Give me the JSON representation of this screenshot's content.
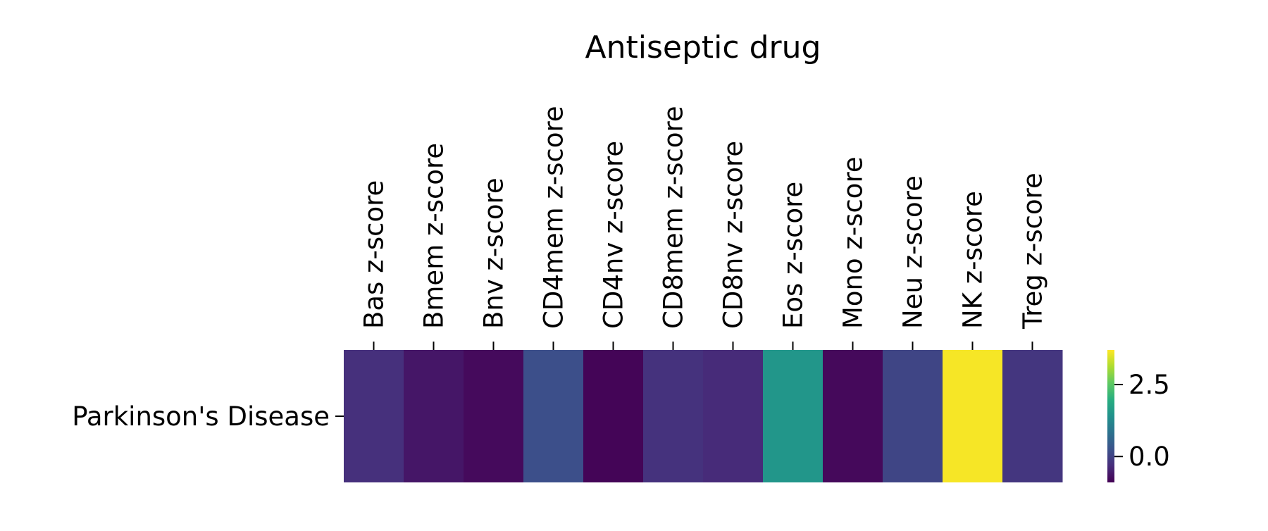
{
  "chart_data": {
    "type": "heatmap",
    "title": "Antiseptic drug",
    "columns": [
      "Bas z-score",
      "Bmem z-score",
      "Bnv z-score",
      "CD4mem z-score",
      "CD4nv z-score",
      "CD8mem z-score",
      "CD8nv z-score",
      "Eos z-score",
      "Mono z-score",
      "Neu z-score",
      "NK z-score",
      "Treg z-score"
    ],
    "rows": [
      "Parkinson's Disease"
    ],
    "values": [
      [
        -0.28,
        -0.62,
        -0.78,
        0.2,
        -0.85,
        -0.25,
        -0.35,
        1.5,
        -0.8,
        0.05,
        3.65,
        -0.18
      ]
    ],
    "colormap": "viridis",
    "vmin": -0.9,
    "vmax": 3.7,
    "colorbar": {
      "ticks": [
        0.0,
        2.5
      ],
      "tick_labels": [
        "0.0",
        "2.5"
      ],
      "placement": "right"
    }
  }
}
